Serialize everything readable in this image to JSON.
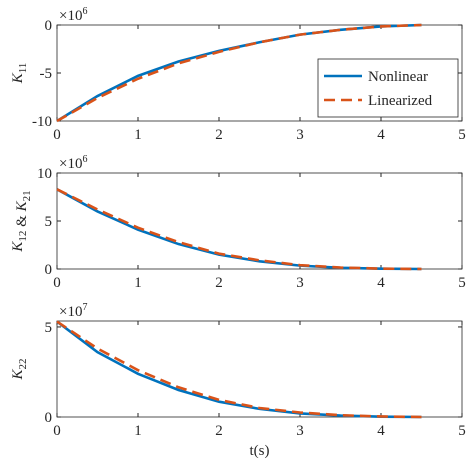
{
  "chart_data": [
    {
      "type": "line",
      "multiplier": {
        "base": "×10",
        "exp": "6"
      },
      "ylabel": [
        {
          "text": "K",
          "sub": "11"
        }
      ],
      "xlim": [
        0,
        5
      ],
      "xticks": [
        0,
        1,
        2,
        3,
        4,
        5
      ],
      "ylim": [
        -10,
        0
      ],
      "yticks": [
        -10,
        -5,
        0
      ],
      "x": [
        0,
        0.5,
        1,
        1.5,
        2,
        2.5,
        3,
        3.5,
        4,
        4.5
      ],
      "legend": "lower right",
      "series": [
        {
          "name": "Nonlinear",
          "color": "#0072bd",
          "dashed": false,
          "values": [
            -10,
            -7.4,
            -5.3,
            -3.8,
            -2.7,
            -1.8,
            -1.0,
            -0.5,
            -0.15,
            0
          ]
        },
        {
          "name": "Linearized",
          "color": "#d95319",
          "dashed": true,
          "values": [
            -10,
            -7.6,
            -5.6,
            -4.0,
            -2.8,
            -1.8,
            -1.0,
            -0.5,
            -0.15,
            0
          ]
        }
      ]
    },
    {
      "type": "line",
      "multiplier": {
        "base": "×10",
        "exp": "6"
      },
      "ylabel": [
        {
          "text": "K",
          "sub": "12"
        },
        {
          "text": " & "
        },
        {
          "text": "K",
          "sub": "21"
        }
      ],
      "xlim": [
        0,
        5
      ],
      "xticks": [
        0,
        1,
        2,
        3,
        4,
        5
      ],
      "ylim": [
        0,
        10
      ],
      "yticks": [
        0,
        5,
        10
      ],
      "x": [
        0,
        0.5,
        1,
        1.5,
        2,
        2.5,
        3,
        3.5,
        4,
        4.5
      ],
      "series": [
        {
          "color": "#0072bd",
          "dashed": false,
          "values": [
            8.3,
            6.0,
            4.1,
            2.6,
            1.5,
            0.8,
            0.35,
            0.12,
            0.03,
            0
          ]
        },
        {
          "color": "#d95319",
          "dashed": true,
          "values": [
            8.3,
            6.2,
            4.3,
            2.8,
            1.6,
            0.9,
            0.4,
            0.15,
            0.04,
            0
          ]
        }
      ]
    },
    {
      "type": "line",
      "multiplier": {
        "base": "×10",
        "exp": "7"
      },
      "ylabel": [
        {
          "text": "K",
          "sub": "22"
        }
      ],
      "xlabel": "t(s)",
      "xlim": [
        0,
        5
      ],
      "xticks": [
        0,
        1,
        2,
        3,
        4,
        5
      ],
      "ylim": [
        0,
        5.33
      ],
      "yticks": [
        0,
        5
      ],
      "x": [
        0,
        0.5,
        1,
        1.5,
        2,
        2.5,
        3,
        3.5,
        4,
        4.5
      ],
      "series": [
        {
          "color": "#0072bd",
          "dashed": false,
          "values": [
            5.3,
            3.6,
            2.4,
            1.5,
            0.85,
            0.45,
            0.2,
            0.08,
            0.02,
            0
          ]
        },
        {
          "color": "#d95319",
          "dashed": true,
          "values": [
            5.3,
            3.8,
            2.6,
            1.65,
            0.95,
            0.5,
            0.25,
            0.1,
            0.03,
            0
          ]
        }
      ]
    }
  ]
}
